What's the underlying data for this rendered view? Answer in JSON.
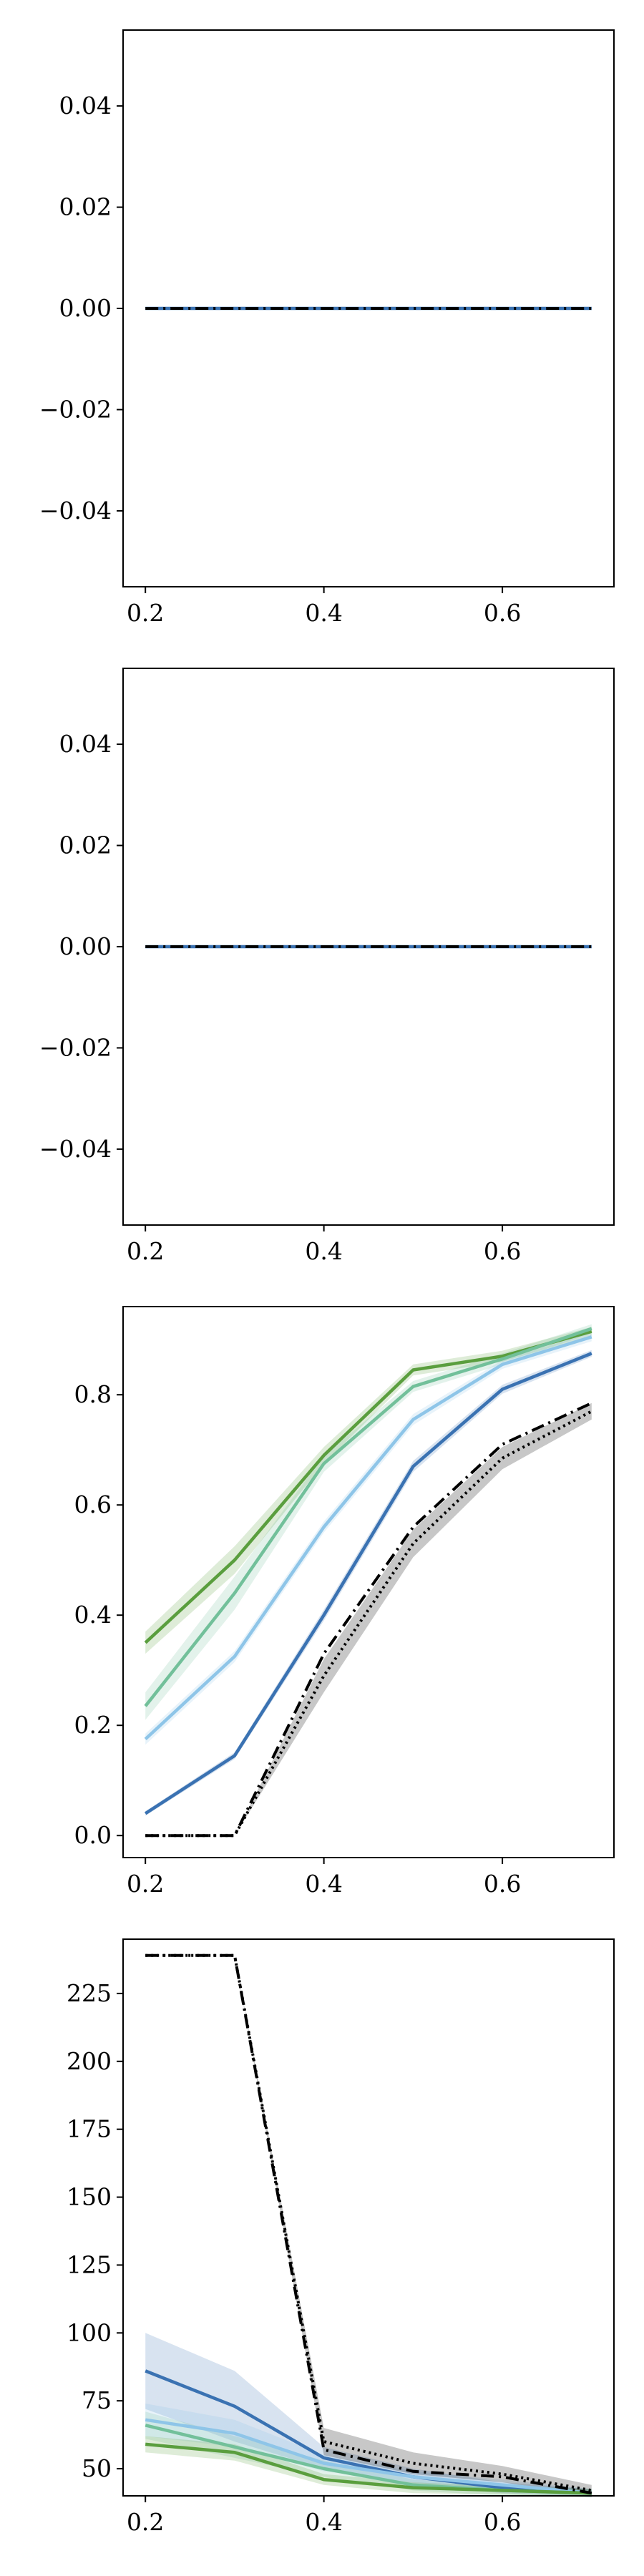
{
  "chart_data": [
    {
      "type": "line",
      "xlim": [
        0.175,
        0.725
      ],
      "ylim": [
        -0.055,
        0.055
      ],
      "xticks": [
        0.2,
        0.4,
        0.6
      ],
      "xtick_labels": [
        "0.2",
        "0.4",
        "0.6"
      ],
      "yticks": [
        -0.04,
        -0.02,
        0.0,
        0.02,
        0.04
      ],
      "ytick_labels": [
        "−0.04",
        "−0.02",
        "0.00",
        "0.02",
        "0.04"
      ],
      "x": [
        0.2,
        0.3,
        0.4,
        0.5,
        0.6,
        0.7
      ],
      "series": [
        {
          "color": "#3a72b2",
          "style": "solid",
          "values": [
            0,
            0,
            0,
            0,
            0,
            0
          ]
        },
        {
          "color": "#000000",
          "style": "dashdot",
          "values": [
            0,
            0,
            0,
            0,
            0,
            0
          ]
        }
      ],
      "grid": false
    },
    {
      "type": "line",
      "xlim": [
        0.175,
        0.725
      ],
      "ylim": [
        -0.055,
        0.055
      ],
      "xticks": [
        0.2,
        0.4,
        0.6
      ],
      "xtick_labels": [
        "0.2",
        "0.4",
        "0.6"
      ],
      "yticks": [
        -0.04,
        -0.02,
        0.0,
        0.02,
        0.04
      ],
      "ytick_labels": [
        "−0.04",
        "−0.02",
        "0.00",
        "0.02",
        "0.04"
      ],
      "x": [
        0.2,
        0.3,
        0.4,
        0.5,
        0.6,
        0.7
      ],
      "series": [
        {
          "color": "#3a72b2",
          "style": "solid",
          "values": [
            0,
            0,
            0,
            0,
            0,
            0
          ]
        },
        {
          "color": "#000000",
          "style": "dashdot",
          "values": [
            0,
            0,
            0,
            0,
            0,
            0
          ]
        }
      ],
      "grid": false
    },
    {
      "type": "line",
      "xlim": [
        0.175,
        0.725
      ],
      "ylim": [
        -0.04,
        0.96
      ],
      "xticks": [
        0.2,
        0.4,
        0.6
      ],
      "xtick_labels": [
        "0.2",
        "0.4",
        "0.6"
      ],
      "yticks": [
        0.0,
        0.2,
        0.4,
        0.6,
        0.8
      ],
      "ytick_labels": [
        "0.0",
        "0.2",
        "0.4",
        "0.6",
        "0.8"
      ],
      "x": [
        0.2,
        0.3,
        0.4,
        0.5,
        0.6,
        0.7
      ],
      "series": [
        {
          "color": "#5a9e3e",
          "style": "solid",
          "values": [
            0.35,
            0.5,
            0.69,
            0.845,
            0.87,
            0.915
          ],
          "band": [
            0.02,
            0.025,
            0.015,
            0.01,
            0.01,
            0.008
          ]
        },
        {
          "color": "#72c09a",
          "style": "solid",
          "values": [
            0.235,
            0.44,
            0.675,
            0.815,
            0.865,
            0.92
          ],
          "band": [
            0.025,
            0.03,
            0.015,
            0.01,
            0.01,
            0.008
          ]
        },
        {
          "color": "#8ec5e8",
          "style": "solid",
          "values": [
            0.175,
            0.325,
            0.56,
            0.755,
            0.855,
            0.905
          ],
          "band": [
            0.01,
            0.01,
            0.01,
            0.01,
            0.008,
            0.008
          ]
        },
        {
          "color": "#3a72b2",
          "style": "solid",
          "values": [
            0.04,
            0.145,
            0.4,
            0.67,
            0.81,
            0.875
          ],
          "band": [
            0.004,
            0.006,
            0.01,
            0.01,
            0.008,
            0.006
          ]
        },
        {
          "color": "#000000",
          "style": "dotted",
          "values": [
            0.0,
            0.0,
            0.29,
            0.53,
            0.685,
            0.77
          ],
          "band": [
            0.0,
            0.0,
            0.03,
            0.025,
            0.02,
            0.015
          ]
        },
        {
          "color": "#000000",
          "style": "dashdot",
          "values": [
            0.0,
            0.0,
            0.33,
            0.56,
            0.71,
            0.785
          ]
        }
      ],
      "grid": false
    },
    {
      "type": "line",
      "xlim": [
        0.175,
        0.725
      ],
      "ylim": [
        40,
        245
      ],
      "xticks": [
        0.2,
        0.4,
        0.6
      ],
      "xtick_labels": [
        "0.2",
        "0.4",
        "0.6"
      ],
      "yticks": [
        50,
        75,
        100,
        125,
        150,
        175,
        200,
        225
      ],
      "ytick_labels": [
        "50",
        "75",
        "100",
        "125",
        "150",
        "175",
        "200",
        "225"
      ],
      "x": [
        0.2,
        0.3,
        0.4,
        0.5,
        0.6,
        0.7
      ],
      "series": [
        {
          "color": "#3a72b2",
          "style": "solid",
          "values": [
            86,
            73,
            54,
            47,
            43,
            41
          ],
          "band": [
            14,
            13,
            4,
            3,
            2,
            1.5
          ]
        },
        {
          "color": "#8ec5e8",
          "style": "solid",
          "values": [
            68,
            63,
            52,
            47,
            44,
            41
          ],
          "band": [
            6,
            5,
            3,
            2,
            2,
            1.5
          ]
        },
        {
          "color": "#72c09a",
          "style": "solid",
          "values": [
            66,
            58,
            50,
            44,
            42,
            41
          ],
          "band": [
            5,
            4,
            3,
            2,
            2,
            1.5
          ]
        },
        {
          "color": "#5a9e3e",
          "style": "solid",
          "values": [
            59,
            56,
            46,
            43,
            42,
            41
          ],
          "band": [
            3,
            3,
            2,
            2,
            1.5,
            1.5
          ]
        },
        {
          "color": "#000000",
          "style": "dotted",
          "values": [
            239,
            239,
            60,
            52,
            48,
            42
          ],
          "band": [
            0,
            0,
            5,
            4,
            3,
            2
          ]
        },
        {
          "color": "#000000",
          "style": "dashdot",
          "values": [
            239,
            239,
            57,
            49,
            47,
            41
          ]
        }
      ],
      "grid": false
    }
  ]
}
